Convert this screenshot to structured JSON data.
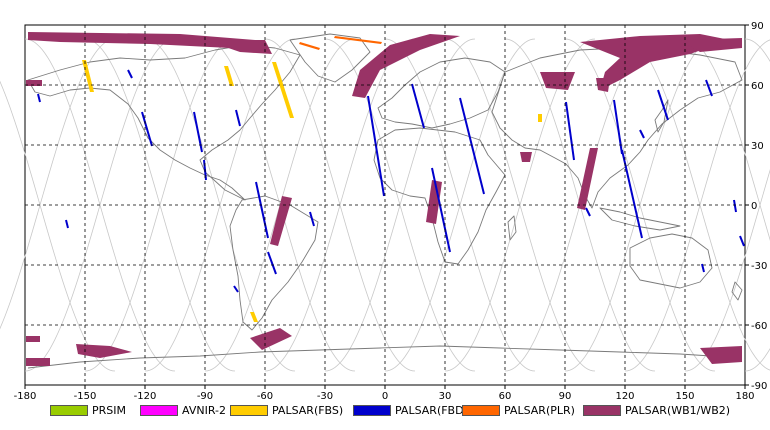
{
  "map": {
    "x_ticks": [
      "-180",
      "-150",
      "-120",
      "-90",
      "-60",
      "-30",
      "0",
      "30",
      "60",
      "90",
      "120",
      "150",
      "180"
    ],
    "y_ticks": [
      "90",
      "60",
      "30",
      "0",
      "-30",
      "-60",
      "-90"
    ]
  },
  "legend": [
    {
      "label": "PRSIM",
      "color": "#99cc00"
    },
    {
      "label": "AVNIR-2",
      "color": "#ff00ff"
    },
    {
      "label": "PALSAR(FBS)",
      "color": "#ffcc00"
    },
    {
      "label": "PALSAR(FBD)",
      "color": "#0000cc"
    },
    {
      "label": "PALSAR(PLR)",
      "color": "#ff6600"
    },
    {
      "label": "PALSAR(WB1/WB2)",
      "color": "#993366"
    }
  ]
}
